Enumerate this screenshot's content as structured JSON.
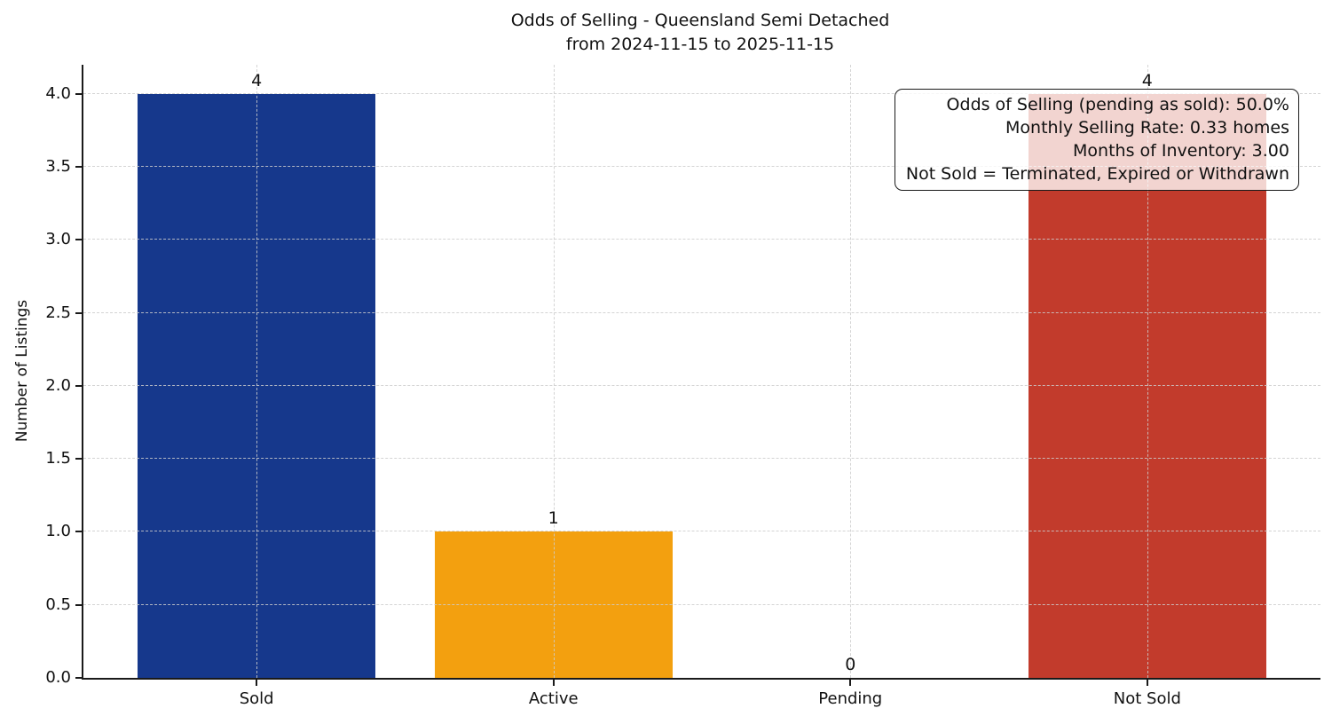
{
  "chart": {
    "title_line1": "Odds of Selling - Queensland Semi Detached",
    "title_line2": "from 2024-11-15 to 2025-11-15"
  },
  "annotation": {
    "lines": [
      "Odds of Selling (pending as sold): 50.0%",
      "Monthly Selling Rate: 0.33 homes",
      "Months of Inventory: 3.00",
      "Not Sold = Terminated, Expired or Withdrawn"
    ]
  },
  "chart_data": {
    "type": "bar",
    "title": "Odds of Selling - Queensland Semi Detached\nfrom 2024-11-15 to 2025-11-15",
    "categories": [
      "Sold",
      "Active",
      "Pending",
      "Not Sold"
    ],
    "values": [
      4,
      1,
      0,
      4
    ],
    "bar_value_labels": [
      "4",
      "1",
      "0",
      "4"
    ],
    "bar_colors": [
      "#16388C",
      "#F3A00F",
      null,
      "#C23B2C"
    ],
    "xlabel": "",
    "ylabel": "Number of Listings",
    "ylim": [
      0,
      4.2
    ],
    "yticks": [
      0.0,
      0.5,
      1.0,
      1.5,
      2.0,
      2.5,
      3.0,
      3.5,
      4.0
    ],
    "grid": "dashed light-gray horizontal lines at yticks and vertical lines at category centers, drawn over bars",
    "legend_position": "none",
    "annotation_box_position": "top-right"
  }
}
